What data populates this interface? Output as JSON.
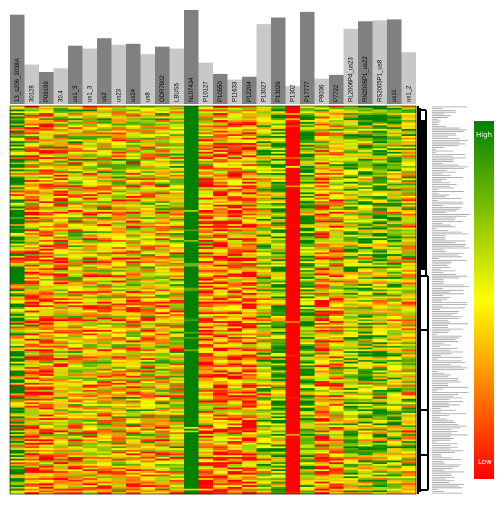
{
  "chart_data": {
    "type": "heatmap",
    "color_scale": {
      "high_label": "High",
      "low_label": "Low",
      "high_color": "#008000",
      "mid_color": "#ffff00",
      "low_color": "#ff0000"
    },
    "columns": [
      {
        "label": "13_s206_3038A",
        "bar": 0.95,
        "shade": "dark"
      },
      {
        "label": "30128",
        "bar": 0.42,
        "shade": "light"
      },
      {
        "label": "P09199",
        "bar": 0.34,
        "shade": "dark"
      },
      {
        "label": "30.4",
        "bar": 0.38,
        "shade": "light"
      },
      {
        "label": "us1_3",
        "bar": 0.62,
        "shade": "dark"
      },
      {
        "label": "us1_3",
        "bar": 0.59,
        "shade": "light"
      },
      {
        "label": "us2",
        "bar": 0.7,
        "shade": "dark"
      },
      {
        "label": "us23",
        "bar": 0.63,
        "shade": "light"
      },
      {
        "label": "us24",
        "bar": 0.64,
        "shade": "dark"
      },
      {
        "label": "us8",
        "bar": 0.53,
        "shade": "light"
      },
      {
        "label": "ODR7602",
        "bar": 0.61,
        "shade": "dark"
      },
      {
        "label": "LBUS5",
        "bar": 0.59,
        "shade": "light"
      },
      {
        "label": "NL07434",
        "bar": 1.0,
        "shade": "dark"
      },
      {
        "label": "P10127",
        "bar": 0.44,
        "shade": "light"
      },
      {
        "label": "P10550",
        "bar": 0.32,
        "shade": "dark"
      },
      {
        "label": "P11633",
        "bar": 0.26,
        "shade": "light"
      },
      {
        "label": "P12204",
        "bar": 0.29,
        "shade": "dark"
      },
      {
        "label": "P13027",
        "bar": 0.85,
        "shade": "light"
      },
      {
        "label": "P13026",
        "bar": 0.92,
        "shade": "dark"
      },
      {
        "label": "P1302",
        "bar": 0.19,
        "shade": "light"
      },
      {
        "label": "P17777",
        "bar": 0.98,
        "shade": "dark"
      },
      {
        "label": "P9036",
        "bar": 0.27,
        "shade": "light"
      },
      {
        "label": "P7722",
        "bar": 0.31,
        "shade": "dark"
      },
      {
        "label": "RL2006P4_us23",
        "bar": 0.8,
        "shade": "light"
      },
      {
        "label": "RN2005P1_us22",
        "bar": 0.88,
        "shade": "dark"
      },
      {
        "label": "RS2005P1_us8",
        "bar": 0.89,
        "shade": "light"
      },
      {
        "label": "us11",
        "bar": 0.9,
        "shade": "dark"
      },
      {
        "label": "us1_2",
        "bar": 0.55,
        "shade": "light"
      }
    ],
    "row_count": 220,
    "column_bias": [
      0,
      -0.35,
      -0.35,
      -0.25,
      -0.1,
      -0.15,
      -0.1,
      -0.1,
      -0.15,
      -0.1,
      -0.05,
      0,
      1.0,
      -0.45,
      -0.5,
      -0.5,
      -0.45,
      0.2,
      0.5,
      -1.0,
      0.6,
      -0.3,
      -0.2,
      0.35,
      0.35,
      0.35,
      0.3,
      0.05
    ]
  },
  "colors": {
    "bar_dark": "#808080",
    "bar_light": "#c8c8c8",
    "dendrogram": "#000000",
    "row_bars": "#a0a0a0"
  }
}
